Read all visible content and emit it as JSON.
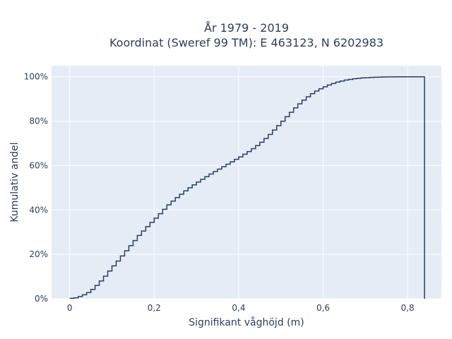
{
  "chart_data": {
    "type": "line",
    "line_shape": "step",
    "title_lines": [
      "År 1979 - 2019",
      "Koordinat (Sweref 99 TM): E 463123, N 6202983"
    ],
    "xlabel": "Signifikant våghöjd (m)",
    "ylabel": "Kumulativ andel",
    "xlim": [
      -0.043,
      0.88
    ],
    "ylim": [
      0,
      1.05
    ],
    "x_ticks": [
      {
        "value": 0,
        "label": "0"
      },
      {
        "value": 0.2,
        "label": "0,2"
      },
      {
        "value": 0.4,
        "label": "0,4"
      },
      {
        "value": 0.6,
        "label": "0,6"
      },
      {
        "value": 0.8,
        "label": "0,8"
      }
    ],
    "y_ticks": [
      {
        "value": 0,
        "label": "0%"
      },
      {
        "value": 0.2,
        "label": "20%"
      },
      {
        "value": 0.4,
        "label": "40%"
      },
      {
        "value": 0.6,
        "label": "60%"
      },
      {
        "value": 0.8,
        "label": "80%"
      },
      {
        "value": 1.0,
        "label": "100%"
      }
    ],
    "grid": true,
    "plot_bgcolor": "#e5ecf6",
    "line_color": "#2a3f5f",
    "points": {
      "x": [
        0,
        0.01,
        0.02,
        0.03,
        0.04,
        0.05,
        0.06,
        0.07,
        0.08,
        0.09,
        0.1,
        0.11,
        0.12,
        0.13,
        0.14,
        0.15,
        0.16,
        0.17,
        0.18,
        0.19,
        0.2,
        0.21,
        0.22,
        0.23,
        0.24,
        0.25,
        0.26,
        0.27,
        0.28,
        0.29,
        0.3,
        0.31,
        0.32,
        0.33,
        0.34,
        0.35,
        0.36,
        0.37,
        0.38,
        0.39,
        0.4,
        0.41,
        0.42,
        0.43,
        0.44,
        0.45,
        0.46,
        0.47,
        0.48,
        0.49,
        0.5,
        0.51,
        0.52,
        0.53,
        0.54,
        0.55,
        0.56,
        0.57,
        0.58,
        0.59,
        0.6,
        0.61,
        0.62,
        0.63,
        0.64,
        0.65,
        0.66,
        0.67,
        0.68,
        0.69,
        0.7,
        0.71,
        0.72,
        0.73,
        0.74,
        0.75,
        0.76,
        0.77,
        0.78,
        0.79,
        0.8,
        0.81,
        0.82,
        0.83,
        0.84,
        0.84
      ],
      "y": [
        0.002,
        0.004,
        0.01,
        0.018,
        0.028,
        0.042,
        0.06,
        0.08,
        0.102,
        0.125,
        0.148,
        0.17,
        0.193,
        0.216,
        0.239,
        0.262,
        0.285,
        0.305,
        0.325,
        0.344,
        0.363,
        0.383,
        0.403,
        0.423,
        0.44,
        0.456,
        0.471,
        0.486,
        0.5,
        0.513,
        0.526,
        0.538,
        0.55,
        0.562,
        0.573,
        0.584,
        0.595,
        0.606,
        0.617,
        0.628,
        0.639,
        0.651,
        0.663,
        0.676,
        0.69,
        0.705,
        0.722,
        0.74,
        0.76,
        0.78,
        0.8,
        0.82,
        0.84,
        0.86,
        0.878,
        0.895,
        0.91,
        0.924,
        0.936,
        0.946,
        0.955,
        0.963,
        0.97,
        0.976,
        0.981,
        0.985,
        0.988,
        0.991,
        0.993,
        0.995,
        0.996,
        0.997,
        0.998,
        0.9985,
        0.999,
        0.9993,
        0.9995,
        0.9997,
        0.9998,
        0.9999,
        1.0,
        1.0,
        1.0,
        1.0,
        1.0,
        0.0
      ]
    }
  }
}
